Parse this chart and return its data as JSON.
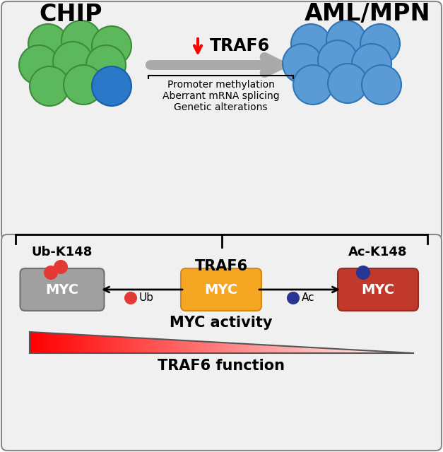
{
  "panel_bg": "#f0f0f0",
  "white_bg": "#ffffff",
  "chip_label": "CHIP",
  "aml_label": "AML/MPN",
  "traf6_arrow_label": "TRAF6",
  "mechanism_lines": [
    "Promoter methylation",
    "Aberrant mRNA splicing",
    "Genetic alterations"
  ],
  "green_cell_color": "#5cb85c",
  "green_cell_edge": "#3d8b3d",
  "blue_chip_color": "#2979c8",
  "blue_chip_edge": "#1a5fa8",
  "blue_aml_color": "#5b9bd5",
  "blue_aml_edge": "#2e75b6",
  "orange_box_color": "#f5a623",
  "orange_box_edge": "#d4891a",
  "gray_box_color": "#a0a0a0",
  "gray_box_edge": "#707070",
  "red_box_color": "#c0392b",
  "red_box_edge": "#962d22",
  "red_dot_color": "#e53935",
  "blue_dot_color": "#283593",
  "ub_label": "Ub-K148",
  "ac_label": "Ac-K148",
  "traf6_mid_label": "TRAF6",
  "myc_label": "MYC",
  "ub_small": "Ub",
  "ac_small": "Ac",
  "myc_activity_label": "MYC activity",
  "traf6_function_label": "TRAF6 function",
  "arrow_gray": "#aaaaaa",
  "border_color": "#888888"
}
